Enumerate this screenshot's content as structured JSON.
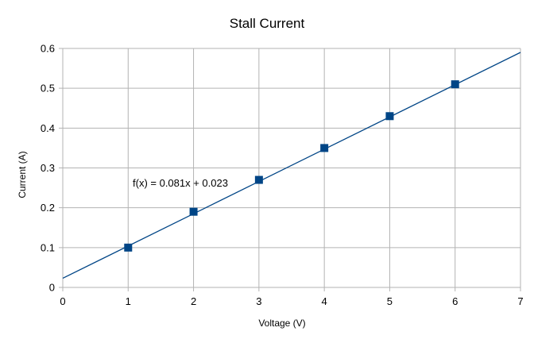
{
  "chart_data": {
    "type": "scatter",
    "title": "Stall Current",
    "xlabel": "Voltage (V)",
    "ylabel": "Current (A)",
    "xlim": [
      0,
      7
    ],
    "ylim": [
      0,
      0.6
    ],
    "x_ticks": [
      "0",
      "1",
      "2",
      "3",
      "4",
      "5",
      "6",
      "7"
    ],
    "y_ticks": [
      "0",
      "0.1",
      "0.2",
      "0.3",
      "0.4",
      "0.5",
      "0.6"
    ],
    "grid": true,
    "series": [
      {
        "x": [
          1,
          2,
          3,
          4,
          5,
          6
        ],
        "y": [
          0.1,
          0.19,
          0.27,
          0.35,
          0.43,
          0.51
        ],
        "color": "#004586",
        "marker": "square"
      }
    ],
    "trendline": {
      "slope": 0.081,
      "intercept": 0.023,
      "color": "#004586",
      "label": "f(x) = 0.081x + 0.023"
    },
    "grid_color": "#b3b3b3"
  }
}
